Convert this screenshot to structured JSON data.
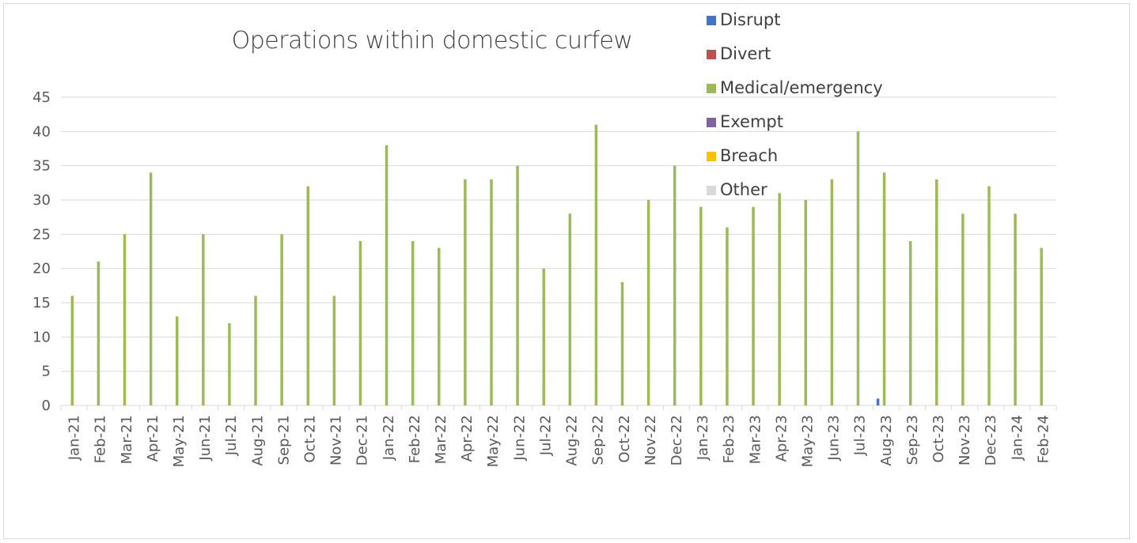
{
  "chart_data": {
    "type": "bar",
    "title": "Operations within domestic curfew",
    "xlabel": "",
    "ylabel": "",
    "ylim": [
      0,
      45
    ],
    "yticks": [
      0,
      5,
      10,
      15,
      20,
      25,
      30,
      35,
      40,
      45
    ],
    "grid": true,
    "legend_placement": "top-right",
    "categories": [
      "Jan-21",
      "Feb-21",
      "Mar-21",
      "Apr-21",
      "May-21",
      "Jun-21",
      "Jul-21",
      "Aug-21",
      "Sep-21",
      "Oct-21",
      "Nov-21",
      "Dec-21",
      "Jan-22",
      "Feb-22",
      "Mar-22",
      "Apr-22",
      "May-22",
      "Jun-22",
      "Jul-22",
      "Aug-22",
      "Sep-22",
      "Oct-22",
      "Nov-22",
      "Dec-22",
      "Jan-23",
      "Feb-23",
      "Mar-23",
      "Apr-23",
      "May-23",
      "Jun-23",
      "Jul-23",
      "Aug-23",
      "Sep-23",
      "Oct-23",
      "Nov-23",
      "Dec-23",
      "Jan-24",
      "Feb-24"
    ],
    "series": [
      {
        "name": "Disrupt",
        "color": "#4472c4",
        "values": [
          0,
          0,
          0,
          0,
          0,
          0,
          0,
          0,
          0,
          0,
          0,
          0,
          0,
          0,
          0,
          0,
          0,
          0,
          0,
          0,
          0,
          0,
          0,
          0,
          0,
          0,
          0,
          0,
          0,
          0,
          0,
          1,
          0,
          0,
          0,
          0,
          0,
          0
        ]
      },
      {
        "name": "Divert",
        "color": "#c0504d",
        "values": [
          0,
          0,
          0,
          0,
          0,
          0,
          0,
          0,
          0,
          0,
          0,
          0,
          0,
          0,
          0,
          0,
          0,
          0,
          0,
          0,
          0,
          0,
          0,
          0,
          0,
          0,
          0,
          0,
          0,
          0,
          0,
          0,
          0,
          0,
          0,
          0,
          0,
          0
        ]
      },
      {
        "name": "Medical/emergency",
        "color": "#9bbb59",
        "values": [
          16,
          21,
          25,
          34,
          13,
          25,
          12,
          16,
          25,
          32,
          16,
          24,
          38,
          24,
          23,
          33,
          33,
          35,
          20,
          28,
          41,
          18,
          30,
          35,
          29,
          26,
          29,
          31,
          30,
          33,
          40,
          34,
          24,
          33,
          28,
          32,
          28,
          23
        ]
      },
      {
        "name": "Exempt",
        "color": "#8064a2",
        "values": [
          0,
          0,
          0,
          0,
          0,
          0,
          0,
          0,
          0,
          0,
          0,
          0,
          0,
          0,
          0,
          0,
          0,
          0,
          0,
          0,
          0,
          0,
          0,
          0,
          0,
          0,
          0,
          0,
          0,
          0,
          0,
          0,
          0,
          0,
          0,
          0,
          0,
          0
        ]
      },
      {
        "name": "Breach",
        "color": "#ffc000",
        "values": [
          0,
          0,
          0,
          0,
          0,
          0,
          0,
          0,
          0,
          0,
          0,
          0,
          0,
          0,
          0,
          0,
          0,
          0,
          0,
          0,
          0,
          0,
          0,
          0,
          0,
          0,
          0,
          0,
          0,
          0,
          0,
          0,
          0,
          0,
          0,
          0,
          0,
          0
        ]
      },
      {
        "name": "Other",
        "color": "#d9d9d9",
        "values": [
          0,
          0,
          0,
          0,
          0,
          0,
          0,
          0,
          0,
          0,
          0,
          0,
          0,
          0,
          0,
          0,
          0,
          0,
          0,
          0,
          0,
          0,
          0,
          0,
          0,
          0,
          0,
          0,
          0,
          0,
          0,
          0,
          0,
          0,
          0,
          0,
          0,
          0
        ]
      }
    ]
  }
}
